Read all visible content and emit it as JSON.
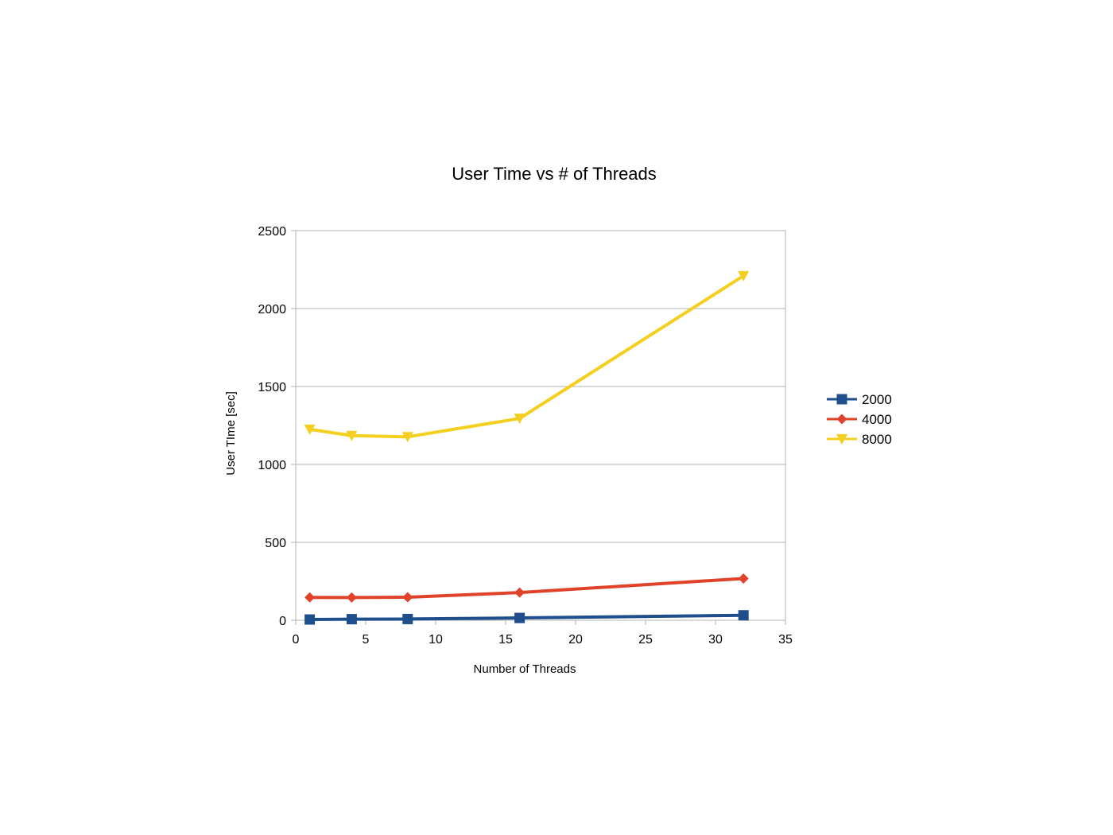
{
  "chart_data": {
    "type": "line",
    "title": "User Time vs # of Threads",
    "xlabel": "Number of Threads",
    "ylabel": "User TIme [sec]",
    "xlim": [
      0,
      35
    ],
    "ylim": [
      0,
      2500
    ],
    "xticks": [
      0,
      5,
      10,
      15,
      20,
      25,
      30,
      35
    ],
    "yticks": [
      0,
      500,
      1000,
      1500,
      2000,
      2500
    ],
    "grid": "horizontal",
    "legend_position": "right",
    "x": [
      1,
      4,
      8,
      16,
      32
    ],
    "series": [
      {
        "name": "2000",
        "color": "#1f4e8c",
        "marker": "square",
        "values": [
          5,
          7,
          8,
          15,
          32
        ]
      },
      {
        "name": "4000",
        "color": "#e0432a",
        "marker": "diamond",
        "values": [
          147,
          146,
          148,
          178,
          268
        ]
      },
      {
        "name": "8000",
        "color": "#f5cf1f",
        "marker": "triangle-down",
        "values": [
          1225,
          1185,
          1177,
          1295,
          2210
        ]
      }
    ]
  }
}
